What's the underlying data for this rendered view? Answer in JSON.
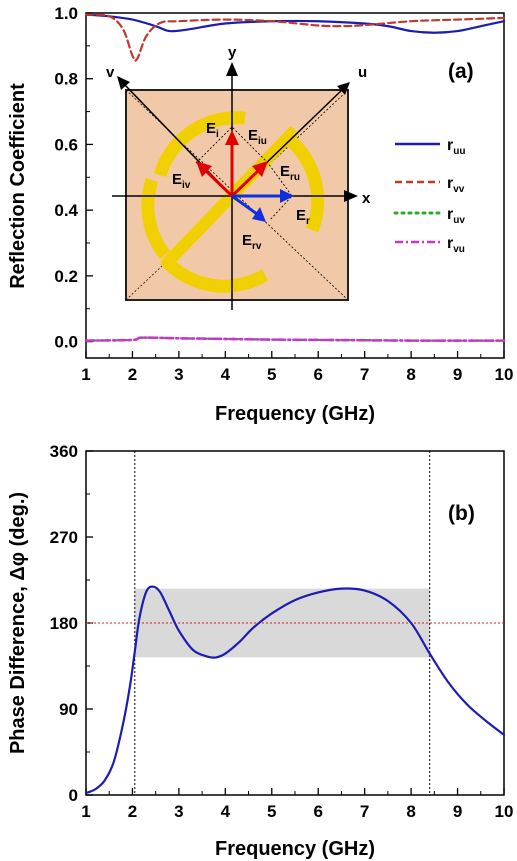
{
  "chart_data": [
    {
      "type": "line",
      "panel_label": "(a)",
      "xlabel": "Frequency (GHz)",
      "ylabel": "Reflection Coefficient",
      "xlim": [
        1,
        10
      ],
      "ylim": [
        -0.05,
        1.0
      ],
      "xticks": [
        "1",
        "2",
        "3",
        "4",
        "5",
        "6",
        "7",
        "8",
        "9",
        "10"
      ],
      "yticks": [
        "0.0",
        "0.2",
        "0.4",
        "0.6",
        "0.8",
        "1.0"
      ],
      "legend": {
        "position": "right",
        "entries": [
          {
            "main": "r",
            "sub": "uu"
          },
          {
            "main": "r",
            "sub": "vv"
          },
          {
            "main": "r",
            "sub": "uv"
          },
          {
            "main": "r",
            "sub": "vu"
          }
        ]
      },
      "series": [
        {
          "name": "ruu",
          "color": "#1c1cb4",
          "dash": "solid",
          "x": [
            1,
            1.5,
            2,
            2.5,
            2.8,
            3.2,
            4,
            5,
            6,
            7,
            7.5,
            8,
            8.5,
            9,
            9.5,
            10
          ],
          "y": [
            0.995,
            0.99,
            0.98,
            0.96,
            0.945,
            0.95,
            0.968,
            0.975,
            0.975,
            0.968,
            0.96,
            0.945,
            0.94,
            0.945,
            0.96,
            0.975
          ]
        },
        {
          "name": "rvv",
          "color": "#c0392b",
          "dash": "dash",
          "x": [
            1,
            1.5,
            1.8,
            2.0,
            2.1,
            2.3,
            2.6,
            3,
            4,
            5,
            6,
            6.5,
            7,
            8,
            9,
            10
          ],
          "y": [
            0.995,
            0.99,
            0.95,
            0.87,
            0.86,
            0.93,
            0.97,
            0.975,
            0.98,
            0.975,
            0.962,
            0.96,
            0.963,
            0.975,
            0.98,
            0.985
          ]
        },
        {
          "name": "ruv",
          "color": "#27ae27",
          "dash": "dot",
          "x": [
            1,
            2,
            2.2,
            3,
            4,
            5,
            6,
            7,
            8,
            9,
            10
          ],
          "y": [
            0.003,
            0.005,
            0.012,
            0.01,
            0.008,
            0.006,
            0.005,
            0.004,
            0.003,
            0.003,
            0.003
          ]
        },
        {
          "name": "rvu",
          "color": "#cc33cc",
          "dash": "dashdot",
          "x": [
            1,
            2,
            2.2,
            3,
            4,
            5,
            6,
            7,
            8,
            9,
            10
          ],
          "y": [
            0.003,
            0.005,
            0.012,
            0.01,
            0.008,
            0.006,
            0.005,
            0.004,
            0.003,
            0.003,
            0.003
          ]
        }
      ],
      "inset": {
        "axis_labels": {
          "x": "x",
          "y": "y",
          "u": "u",
          "v": "v"
        },
        "vectors": [
          {
            "main": "E",
            "sub": "i"
          },
          {
            "main": "E",
            "sub": "iu"
          },
          {
            "main": "E",
            "sub": "iv"
          },
          {
            "main": "E",
            "sub": "ru"
          },
          {
            "main": "E",
            "sub": "r"
          },
          {
            "main": "E",
            "sub": "rv"
          }
        ],
        "background": "#f2c9a8",
        "metal_color": "#f0d000"
      }
    },
    {
      "type": "line",
      "panel_label": "(b)",
      "xlabel": "Frequency (GHz)",
      "ylabel_main": "Phase Difference, ",
      "ylabel_symbol": "Δφ",
      "ylabel_unit": " (deg.)",
      "xlim": [
        1,
        10
      ],
      "ylim": [
        0,
        360
      ],
      "xticks": [
        "1",
        "2",
        "3",
        "4",
        "5",
        "6",
        "7",
        "8",
        "9",
        "10"
      ],
      "yticks": [
        "0",
        "90",
        "180",
        "270",
        "360"
      ],
      "reference_line_y": 180,
      "vertical_lines_x": [
        2.05,
        8.4
      ],
      "band": {
        "x": [
          2.05,
          8.4
        ],
        "y": [
          144,
          216
        ]
      },
      "series": [
        {
          "name": "",
          "color": "#1c1cb4",
          "dash": "solid",
          "x": [
            1,
            1.2,
            1.4,
            1.6,
            1.8,
            1.95,
            2.05,
            2.15,
            2.3,
            2.45,
            2.6,
            2.8,
            3.0,
            3.3,
            3.6,
            3.8,
            4.0,
            4.3,
            4.6,
            5.0,
            5.5,
            6.0,
            6.5,
            7.0,
            7.5,
            8.0,
            8.4,
            8.8,
            9.2,
            9.6,
            10
          ],
          "y": [
            2,
            6,
            15,
            35,
            75,
            115,
            150,
            185,
            213,
            218,
            212,
            192,
            172,
            152,
            145,
            144,
            148,
            160,
            175,
            190,
            204,
            212,
            216,
            214,
            203,
            180,
            148,
            118,
            95,
            78,
            63
          ]
        }
      ]
    }
  ]
}
